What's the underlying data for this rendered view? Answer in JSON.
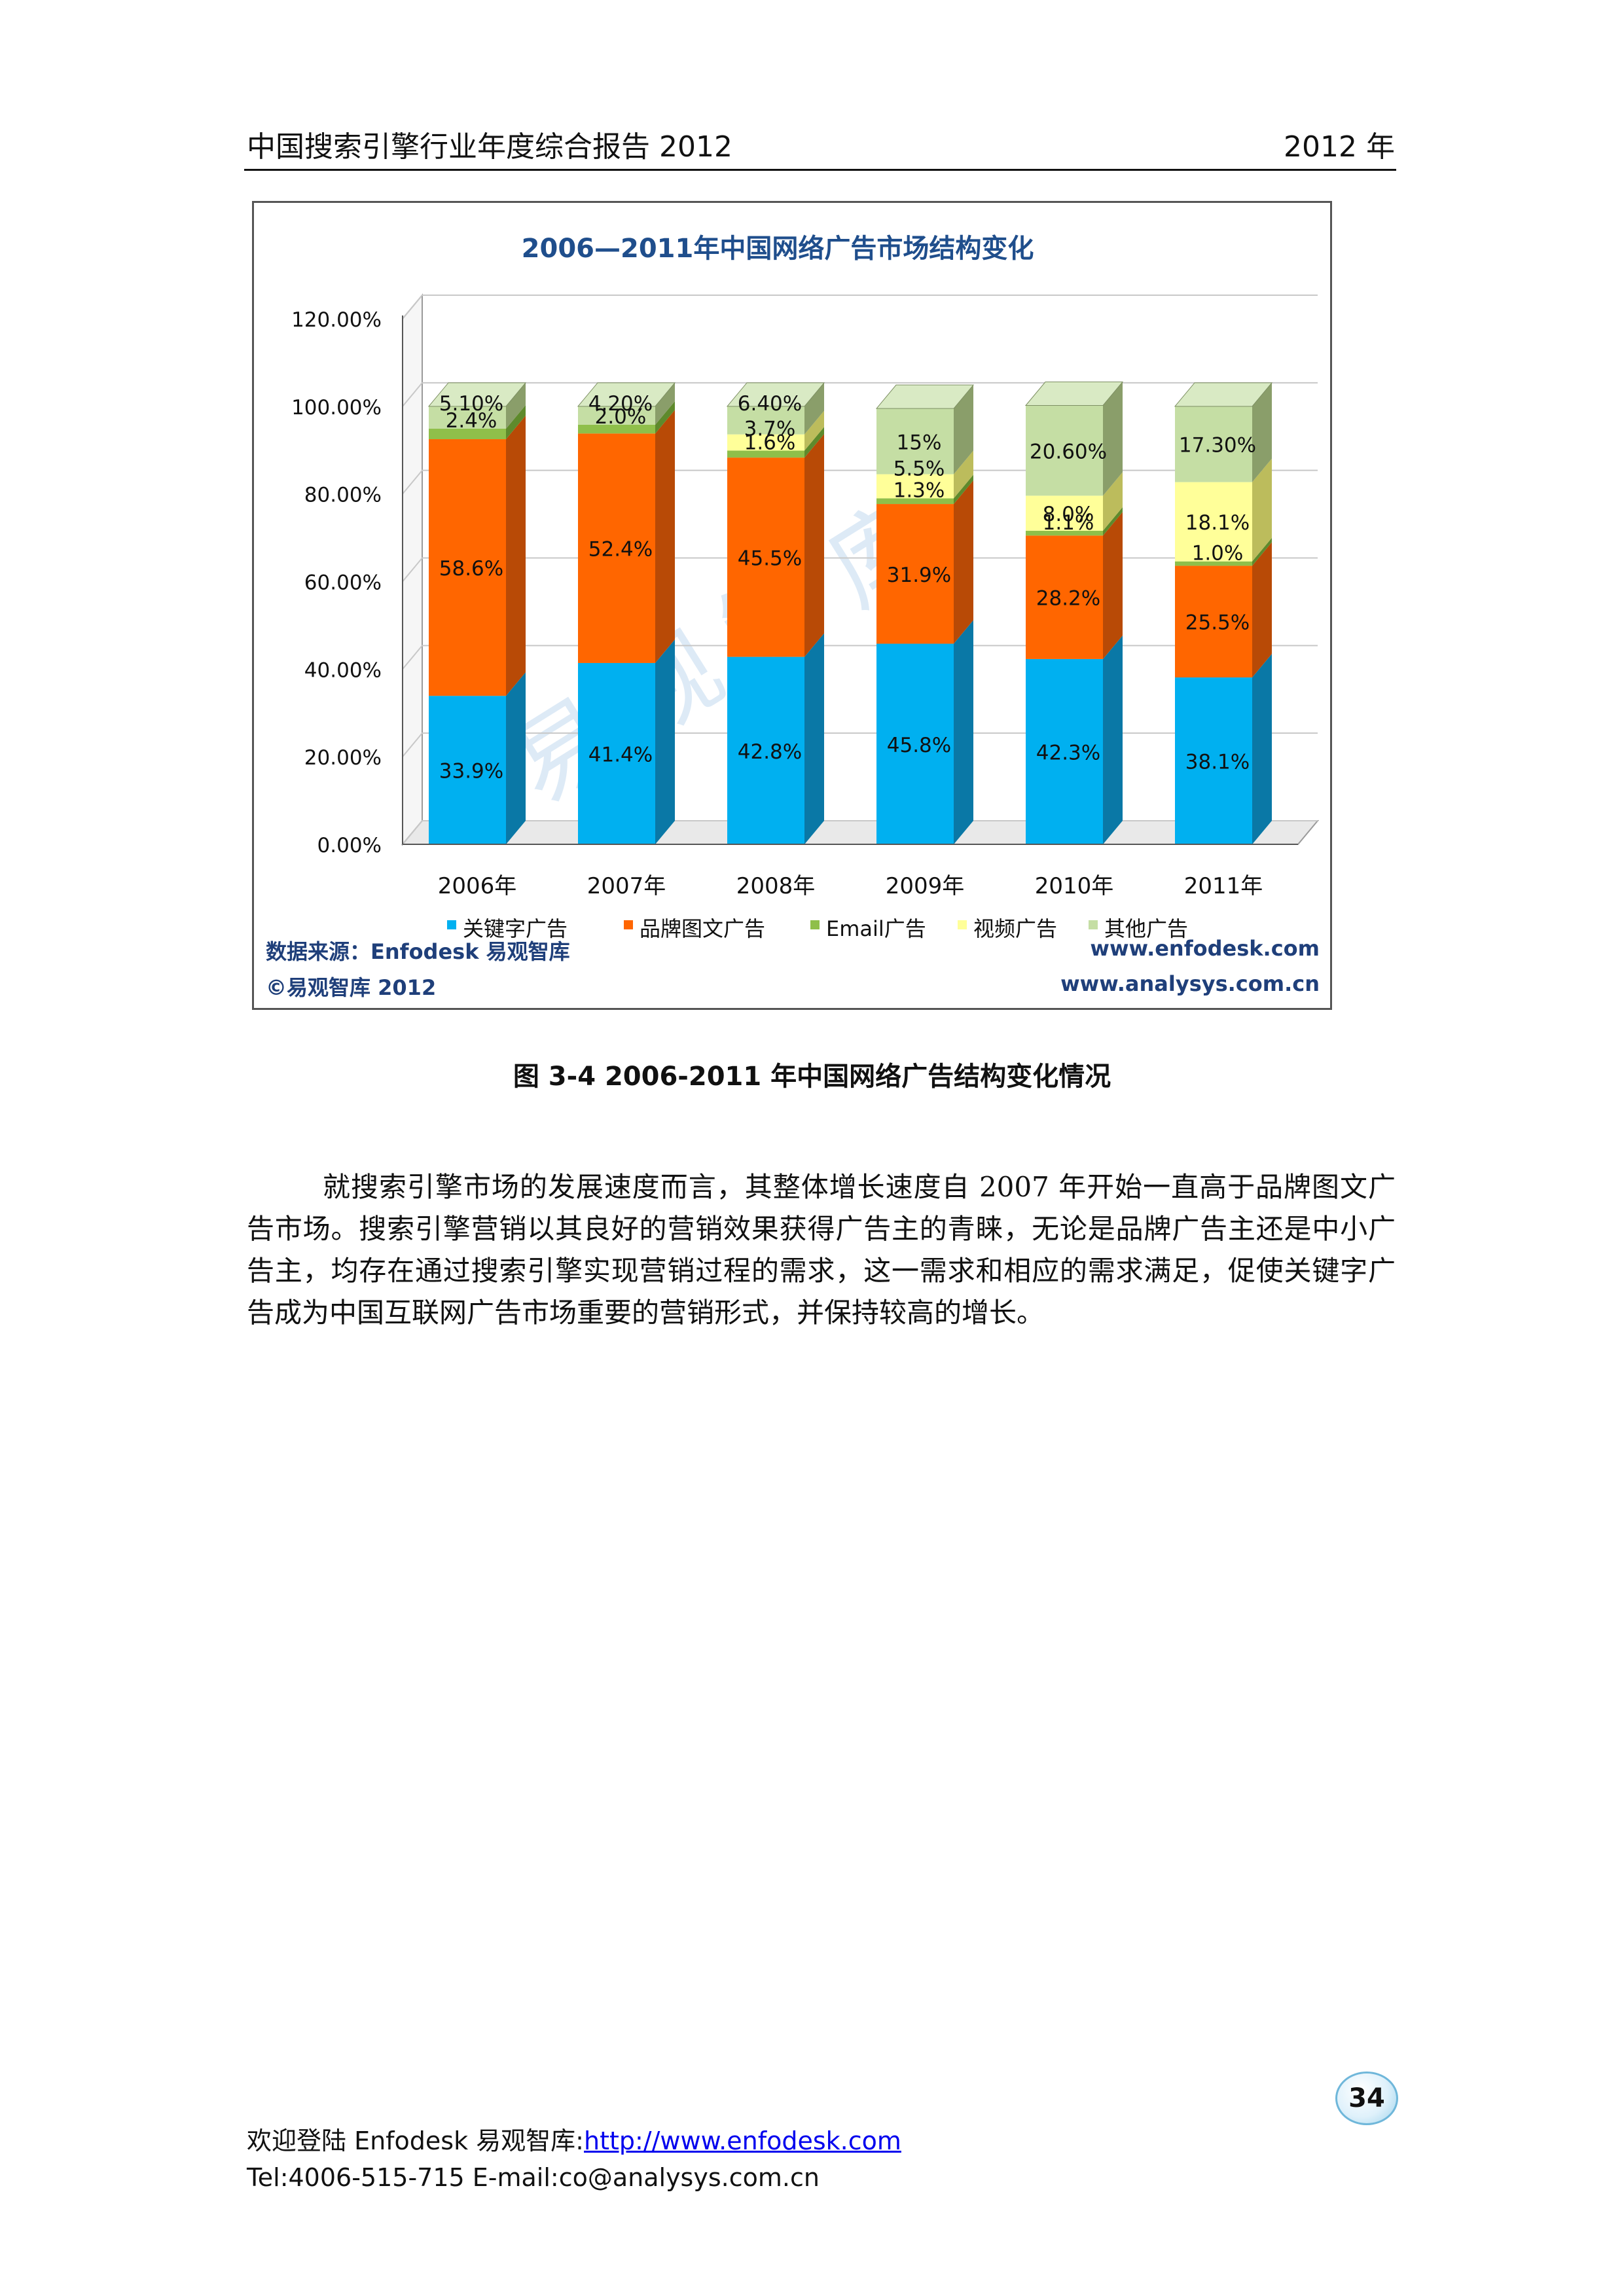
{
  "header": {
    "left": "中国搜索引擎行业年度综合报告 2012",
    "right": "2012 年"
  },
  "figure": {
    "source": "数据来源：Enfodesk 易观智库",
    "copyright": "©易观智库 2012",
    "url1": "www.enfodesk.com",
    "url2": "www.analysys.com.cn",
    "watermark": "易观智库"
  },
  "chart_data": {
    "type": "bar",
    "stacked": true,
    "title": "2006—2011年中国网络广告市场结构变化",
    "categories": [
      "2006年",
      "2007年",
      "2008年",
      "2009年",
      "2010年",
      "2011年"
    ],
    "ylim": [
      0,
      120
    ],
    "y_ticks": [
      "0.00%",
      "20.00%",
      "40.00%",
      "60.00%",
      "80.00%",
      "100.00%",
      "120.00%"
    ],
    "legend_position": "bottom",
    "series": [
      {
        "name": "关键字广告",
        "color": "#00b0f0",
        "side": "#0a78a6",
        "values": [
          33.9,
          41.4,
          42.8,
          45.8,
          42.3,
          38.1
        ],
        "labels": [
          "33.9%",
          "41.4%",
          "42.8%",
          "45.8%",
          "42.3%",
          "38.1%"
        ]
      },
      {
        "name": "品牌图文广告",
        "color": "#ff6600",
        "side": "#b84a06",
        "values": [
          58.6,
          52.4,
          45.5,
          31.9,
          28.2,
          25.5
        ],
        "labels": [
          "58.6%",
          "52.4%",
          "45.5%",
          "31.9%",
          "28.2%",
          "25.5%"
        ]
      },
      {
        "name": "Email广告",
        "color": "#8fbf4a",
        "side": "#5e8a2c",
        "values": [
          2.4,
          2.0,
          1.6,
          1.3,
          1.1,
          1.0
        ],
        "labels": [
          "2.4%",
          "2.0%",
          "1.6%",
          "1.3%",
          "1.1%",
          "1.0%"
        ]
      },
      {
        "name": "视频广告",
        "color": "#ffff99",
        "side": "#bcbc5c",
        "values": [
          0,
          0,
          3.7,
          5.5,
          8.0,
          18.1
        ],
        "labels": [
          "",
          "",
          "3.7%",
          "5.5%",
          "8.0%",
          "18.1%"
        ]
      },
      {
        "name": "其他广告",
        "color": "#c5dea4",
        "side": "#8a9e6a",
        "values": [
          5.1,
          4.2,
          6.4,
          15,
          20.6,
          17.3
        ],
        "labels": [
          "5.10%",
          "4.20%",
          "6.40%",
          "15%",
          "20.60%",
          "17.30%"
        ]
      }
    ]
  },
  "caption": "图 3-4 2006-2011 年中国网络广告结构变化情况",
  "paragraph": "就搜索引擎市场的发展速度而言，其整体增长速度自 2007 年开始一直高于品牌图文广告市场。搜索引擎营销以其良好的营销效果获得广告主的青睐，无论是品牌广告主还是中小广告主，均存在通过搜索引擎实现营销过程的需求，这一需求和相应的需求满足，促使关键字广告成为中国互联网广告市场重要的营销形式，并保持较高的增长。",
  "page_number": "34",
  "footer": {
    "welcome": "欢迎登陆 Enfodesk  易观智库:",
    "link": "http://www.enfodesk.com",
    "contact": "Tel:4006-515-715    E-mail:co@analysys.com.cn"
  }
}
